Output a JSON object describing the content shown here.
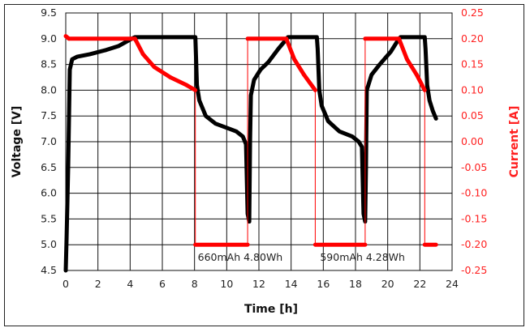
{
  "chart_data": {
    "type": "line",
    "title": "",
    "xlabel": "Time [h]",
    "ylabel": "Voltage [V]",
    "y2label": "Current [A]",
    "xlim": [
      0,
      24
    ],
    "ylim": [
      4.5,
      9.5
    ],
    "y2lim": [
      -0.25,
      0.25
    ],
    "grid": true,
    "xticks": [
      "0",
      "2",
      "4",
      "6",
      "8",
      "10",
      "12",
      "14",
      "16",
      "18",
      "20",
      "22",
      "24"
    ],
    "yticks": [
      "4.5",
      "5.0",
      "5.5",
      "6.0",
      "6.5",
      "7.0",
      "7.5",
      "8.0",
      "8.5",
      "9.0",
      "9.5"
    ],
    "y2ticks": [
      "-0.25",
      "-0.20",
      "-0.15",
      "-0.10",
      "-0.05",
      "0.00",
      "0.05",
      "0.10",
      "0.15",
      "0.20",
      "0.25"
    ],
    "colors": {
      "voltage": "#000000",
      "current": "#ff0000"
    },
    "series": [
      {
        "name": "Voltage",
        "axis": "left",
        "points": [
          [
            0,
            4.5
          ],
          [
            0.05,
            5.1
          ],
          [
            0.15,
            6.5
          ],
          [
            0.25,
            8.4
          ],
          [
            0.4,
            8.6
          ],
          [
            0.7,
            8.65
          ],
          [
            1.5,
            8.7
          ],
          [
            2.5,
            8.78
          ],
          [
            3.3,
            8.86
          ],
          [
            4.1,
            9.0
          ],
          [
            4.3,
            9.03
          ],
          [
            8.05,
            9.03
          ],
          [
            8.1,
            8.6
          ],
          [
            8.15,
            8.1
          ],
          [
            8.3,
            7.8
          ],
          [
            8.7,
            7.5
          ],
          [
            9.3,
            7.35
          ],
          [
            10,
            7.27
          ],
          [
            10.6,
            7.2
          ],
          [
            11,
            7.1
          ],
          [
            11.2,
            6.95
          ],
          [
            11.3,
            5.6
          ],
          [
            11.4,
            5.45
          ],
          [
            11.45,
            7.0
          ],
          [
            11.5,
            7.9
          ],
          [
            11.7,
            8.2
          ],
          [
            12.1,
            8.4
          ],
          [
            12.6,
            8.55
          ],
          [
            13.2,
            8.8
          ],
          [
            13.6,
            8.95
          ],
          [
            13.8,
            9.03
          ],
          [
            15.6,
            9.03
          ],
          [
            15.65,
            8.8
          ],
          [
            15.75,
            8.0
          ],
          [
            15.9,
            7.7
          ],
          [
            16.3,
            7.4
          ],
          [
            17,
            7.2
          ],
          [
            17.8,
            7.1
          ],
          [
            18.2,
            7.0
          ],
          [
            18.4,
            6.9
          ],
          [
            18.5,
            5.6
          ],
          [
            18.6,
            5.45
          ],
          [
            18.65,
            6.5
          ],
          [
            18.7,
            8.0
          ],
          [
            19,
            8.3
          ],
          [
            19.5,
            8.5
          ],
          [
            20.2,
            8.75
          ],
          [
            20.7,
            9.0
          ],
          [
            20.8,
            9.03
          ],
          [
            22.3,
            9.03
          ],
          [
            22.35,
            8.8
          ],
          [
            22.45,
            8.1
          ],
          [
            22.6,
            7.8
          ],
          [
            22.8,
            7.6
          ],
          [
            23,
            7.45
          ]
        ]
      },
      {
        "name": "Current",
        "axis": "right",
        "points": [
          [
            0,
            0.205
          ],
          [
            0.2,
            0.2
          ],
          [
            4.3,
            0.2
          ],
          [
            4.8,
            0.17
          ],
          [
            5.5,
            0.145
          ],
          [
            6.5,
            0.125
          ],
          [
            7.5,
            0.11
          ],
          [
            8.05,
            0.1
          ],
          [
            8.05,
            -0.2
          ],
          [
            11.3,
            -0.2
          ],
          [
            11.3,
            0.2
          ],
          [
            13.7,
            0.2
          ],
          [
            14.2,
            0.16
          ],
          [
            14.8,
            0.13
          ],
          [
            15.5,
            0.1
          ],
          [
            15.5,
            -0.2
          ],
          [
            18.6,
            -0.2
          ],
          [
            18.6,
            0.2
          ],
          [
            20.7,
            0.2
          ],
          [
            21.2,
            0.16
          ],
          [
            21.8,
            0.13
          ],
          [
            22.3,
            0.1
          ],
          [
            22.3,
            -0.2
          ],
          [
            23,
            -0.2
          ]
        ]
      }
    ],
    "annotations": [
      {
        "text": "660mAh 4.80Wh",
        "x": 8.2,
        "y": 4.75
      },
      {
        "text": "590mAh 4.28Wh",
        "x": 15.8,
        "y": 4.75
      }
    ]
  }
}
